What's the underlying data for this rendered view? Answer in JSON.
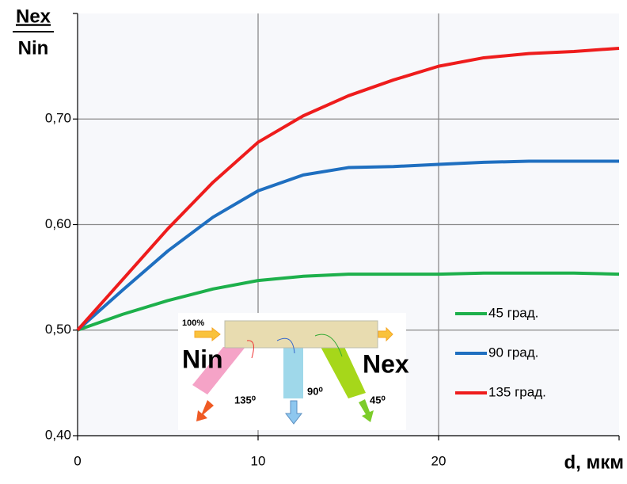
{
  "chart_data": {
    "type": "line",
    "y_label_numerator": "Nex",
    "y_label_denominator": "Nin",
    "x_label": "d, мкм",
    "x": [
      0,
      2.5,
      5,
      7.5,
      10,
      12.5,
      15,
      17.5,
      20,
      22.5,
      25,
      27.5,
      30
    ],
    "series": [
      {
        "name": "45 град.",
        "color": "#1db04b",
        "values": [
          0.5,
          0.515,
          0.528,
          0.539,
          0.547,
          0.551,
          0.553,
          0.553,
          0.553,
          0.554,
          0.554,
          0.554,
          0.553
        ]
      },
      {
        "name": "90 град.",
        "color": "#1f6fc0",
        "values": [
          0.5,
          0.538,
          0.575,
          0.607,
          0.632,
          0.647,
          0.654,
          0.655,
          0.657,
          0.659,
          0.66,
          0.66,
          0.66
        ]
      },
      {
        "name": "135 град.",
        "color": "#ee1c1c",
        "values": [
          0.5,
          0.548,
          0.596,
          0.64,
          0.678,
          0.703,
          0.722,
          0.737,
          0.75,
          0.758,
          0.762,
          0.764,
          0.767
        ]
      }
    ],
    "xlim": [
      0,
      30
    ],
    "xticks": [
      0,
      10,
      20
    ],
    "ylim": [
      0.4,
      0.8
    ],
    "yticks": [
      {
        "value": 0.4,
        "label": "0,40"
      },
      {
        "value": 0.5,
        "label": "0,50"
      },
      {
        "value": 0.6,
        "label": "0,60"
      },
      {
        "value": 0.7,
        "label": "0,70"
      }
    ],
    "grid": true,
    "legend": "right",
    "inset": {
      "input_label": "100%",
      "left_label": "Nin",
      "right_label": "Nex",
      "angle_labels": [
        "135⁰",
        "90⁰",
        "45⁰"
      ]
    }
  }
}
